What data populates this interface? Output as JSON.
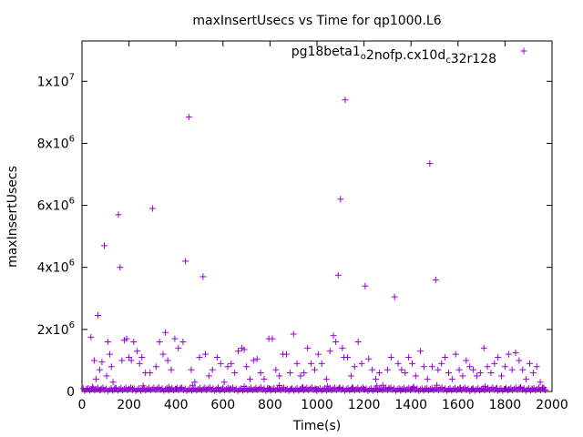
{
  "chart_data": {
    "type": "scatter",
    "title": "maxInsertUsecs vs Time for qp1000.L6",
    "xlabel": "Time(s)",
    "ylabel": "maxInsertUsecs",
    "xlim": [
      0,
      2000
    ],
    "ylim": [
      0,
      11300000
    ],
    "x_ticks": [
      0,
      200,
      400,
      600,
      800,
      1000,
      1200,
      1400,
      1600,
      1800,
      2000
    ],
    "x_tick_labels": [
      "0",
      "200",
      "400",
      "600",
      "800",
      "1000",
      "1200",
      "1400",
      "1600",
      "1800",
      "2000"
    ],
    "y_ticks": [
      0,
      2000000,
      4000000,
      6000000,
      8000000,
      10000000
    ],
    "y_tick_labels": [
      {
        "base": "0",
        "exp": ""
      },
      {
        "base": "2x10",
        "exp": "6"
      },
      {
        "base": "4x10",
        "exp": "6"
      },
      {
        "base": "6x10",
        "exp": "6"
      },
      {
        "base": "8x10",
        "exp": "6"
      },
      {
        "base": "1x10",
        "exp": "7"
      }
    ],
    "legend": {
      "placement": "top-right",
      "label_parts": [
        {
          "text": "pg18beta1",
          "sub": false
        },
        {
          "text": "o",
          "sub": true
        },
        {
          "text": "2nofp.cx10d",
          "sub": false
        },
        {
          "text": "c",
          "sub": true
        },
        {
          "text": "32r128",
          "sub": false
        }
      ]
    },
    "marker": "+",
    "grid": false,
    "series": [
      {
        "color": "#9400d3",
        "points": [
          [
            38,
            1750000
          ],
          [
            52,
            1000000
          ],
          [
            60,
            400000
          ],
          [
            68,
            2450000
          ],
          [
            75,
            700000
          ],
          [
            85,
            950000
          ],
          [
            95,
            4700000
          ],
          [
            105,
            500000
          ],
          [
            110,
            1600000
          ],
          [
            118,
            1200000
          ],
          [
            125,
            800000
          ],
          [
            132,
            300000
          ],
          [
            155,
            5700000
          ],
          [
            162,
            4000000
          ],
          [
            170,
            1000000
          ],
          [
            180,
            1650000
          ],
          [
            190,
            1700000
          ],
          [
            200,
            1100000
          ],
          [
            210,
            1000000
          ],
          [
            220,
            1600000
          ],
          [
            235,
            1300000
          ],
          [
            245,
            900000
          ],
          [
            255,
            1100000
          ],
          [
            270,
            600000
          ],
          [
            290,
            600000
          ],
          [
            300,
            5900000
          ],
          [
            315,
            800000
          ],
          [
            330,
            1600000
          ],
          [
            345,
            1200000
          ],
          [
            355,
            1900000
          ],
          [
            365,
            1000000
          ],
          [
            380,
            700000
          ],
          [
            395,
            1700000
          ],
          [
            410,
            1400000
          ],
          [
            430,
            1600000
          ],
          [
            440,
            4200000
          ],
          [
            455,
            8850000
          ],
          [
            465,
            700000
          ],
          [
            480,
            300000
          ],
          [
            500,
            1100000
          ],
          [
            515,
            3700000
          ],
          [
            525,
            1200000
          ],
          [
            540,
            500000
          ],
          [
            555,
            700000
          ],
          [
            575,
            1100000
          ],
          [
            590,
            900000
          ],
          [
            605,
            300000
          ],
          [
            620,
            800000
          ],
          [
            635,
            900000
          ],
          [
            650,
            600000
          ],
          [
            665,
            1300000
          ],
          [
            680,
            1400000
          ],
          [
            690,
            1350000
          ],
          [
            700,
            800000
          ],
          [
            715,
            400000
          ],
          [
            730,
            1000000
          ],
          [
            745,
            1050000
          ],
          [
            760,
            600000
          ],
          [
            775,
            400000
          ],
          [
            795,
            1700000
          ],
          [
            810,
            1700000
          ],
          [
            825,
            700000
          ],
          [
            840,
            500000
          ],
          [
            855,
            1200000
          ],
          [
            870,
            1200000
          ],
          [
            885,
            600000
          ],
          [
            900,
            1850000
          ],
          [
            915,
            900000
          ],
          [
            930,
            500000
          ],
          [
            945,
            600000
          ],
          [
            960,
            1400000
          ],
          [
            975,
            900000
          ],
          [
            990,
            700000
          ],
          [
            1005,
            1200000
          ],
          [
            1020,
            900000
          ],
          [
            1040,
            400000
          ],
          [
            1055,
            1300000
          ],
          [
            1070,
            1800000
          ],
          [
            1080,
            1600000
          ],
          [
            1090,
            3750000
          ],
          [
            1100,
            6200000
          ],
          [
            1108,
            1400000
          ],
          [
            1115,
            1100000
          ],
          [
            1120,
            9400000
          ],
          [
            1130,
            1100000
          ],
          [
            1145,
            500000
          ],
          [
            1160,
            800000
          ],
          [
            1175,
            1600000
          ],
          [
            1190,
            900000
          ],
          [
            1205,
            3400000
          ],
          [
            1220,
            1050000
          ],
          [
            1235,
            700000
          ],
          [
            1250,
            400000
          ],
          [
            1265,
            600000
          ],
          [
            1280,
            200000
          ],
          [
            1300,
            700000
          ],
          [
            1315,
            1100000
          ],
          [
            1330,
            3050000
          ],
          [
            1345,
            900000
          ],
          [
            1360,
            700000
          ],
          [
            1375,
            600000
          ],
          [
            1390,
            1100000
          ],
          [
            1405,
            900000
          ],
          [
            1420,
            500000
          ],
          [
            1440,
            1300000
          ],
          [
            1455,
            800000
          ],
          [
            1470,
            400000
          ],
          [
            1480,
            7350000
          ],
          [
            1490,
            800000
          ],
          [
            1505,
            3600000
          ],
          [
            1515,
            700000
          ],
          [
            1530,
            900000
          ],
          [
            1545,
            1100000
          ],
          [
            1560,
            600000
          ],
          [
            1575,
            400000
          ],
          [
            1590,
            1200000
          ],
          [
            1605,
            700000
          ],
          [
            1620,
            500000
          ],
          [
            1635,
            1000000
          ],
          [
            1650,
            800000
          ],
          [
            1665,
            700000
          ],
          [
            1680,
            500000
          ],
          [
            1695,
            600000
          ],
          [
            1710,
            1400000
          ],
          [
            1725,
            800000
          ],
          [
            1740,
            600000
          ],
          [
            1755,
            900000
          ],
          [
            1770,
            1100000
          ],
          [
            1785,
            500000
          ],
          [
            1800,
            800000
          ],
          [
            1815,
            1200000
          ],
          [
            1830,
            700000
          ],
          [
            1845,
            1250000
          ],
          [
            1860,
            1000000
          ],
          [
            1875,
            700000
          ],
          [
            1890,
            400000
          ],
          [
            1905,
            900000
          ],
          [
            1920,
            600000
          ],
          [
            1935,
            800000
          ],
          [
            1950,
            300000
          ],
          [
            20,
            80000
          ],
          [
            45,
            150000
          ],
          [
            80,
            60000
          ],
          [
            140,
            120000
          ],
          [
            215,
            90000
          ],
          [
            260,
            180000
          ],
          [
            320,
            70000
          ],
          [
            370,
            140000
          ],
          [
            420,
            100000
          ],
          [
            470,
            200000
          ],
          [
            530,
            60000
          ],
          [
            580,
            130000
          ],
          [
            630,
            90000
          ],
          [
            690,
            160000
          ],
          [
            740,
            70000
          ],
          [
            790,
            110000
          ],
          [
            840,
            190000
          ],
          [
            890,
            80000
          ],
          [
            940,
            140000
          ],
          [
            995,
            60000
          ],
          [
            1045,
            170000
          ],
          [
            1095,
            90000
          ],
          [
            1150,
            130000
          ],
          [
            1200,
            70000
          ],
          [
            1255,
            180000
          ],
          [
            1305,
            100000
          ],
          [
            1355,
            60000
          ],
          [
            1410,
            150000
          ],
          [
            1460,
            90000
          ],
          [
            1510,
            200000
          ],
          [
            1560,
            70000
          ],
          [
            1610,
            120000
          ],
          [
            1660,
            80000
          ],
          [
            1715,
            160000
          ],
          [
            1765,
            100000
          ],
          [
            1815,
            60000
          ],
          [
            1865,
            140000
          ],
          [
            1915,
            90000
          ],
          [
            1960,
            120000
          ],
          [
            1970,
            50000
          ]
        ]
      }
    ]
  }
}
